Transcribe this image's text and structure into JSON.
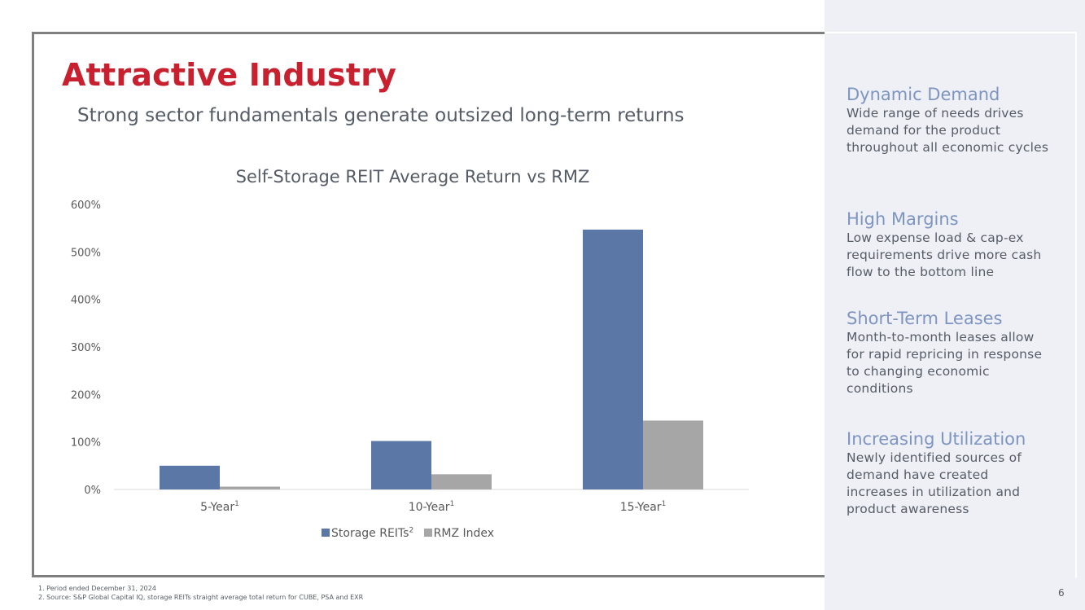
{
  "slide": {
    "title": "Attractive Industry",
    "subtitle": "Strong sector fundamentals generate outsized long-term returns",
    "page_number": "6"
  },
  "chart_data": {
    "type": "bar",
    "title": "Self-Storage REIT Average Return vs RMZ",
    "categories": [
      "5-Year",
      "10-Year",
      "15-Year"
    ],
    "category_superscripts": [
      "1",
      "1",
      "1"
    ],
    "series": [
      {
        "name": "Storage REITs",
        "superscript": "2",
        "color": "#5b77a6",
        "values": [
          50,
          102,
          547
        ]
      },
      {
        "name": "RMZ Index",
        "superscript": "",
        "color": "#a6a6a6",
        "values": [
          6,
          32,
          145
        ]
      }
    ],
    "ylim": [
      0,
      600
    ],
    "yticks": [
      0,
      100,
      200,
      300,
      400,
      500,
      600
    ],
    "ytick_labels": [
      "0%",
      "100%",
      "200%",
      "300%",
      "400%",
      "500%",
      "600%"
    ],
    "xlabel": "",
    "ylabel": "",
    "grid": false,
    "legend_position": "bottom"
  },
  "sidebar": {
    "sections": [
      {
        "heading": "Dynamic Demand",
        "body": "Wide range of needs drives demand for the product throughout all economic cycles"
      },
      {
        "heading": "High Margins",
        "body": "Low expense load & cap-ex requirements drive more cash flow to the bottom line"
      },
      {
        "heading": "Short-Term Leases",
        "body": "Month-to-month leases allow for rapid repricing in response to changing economic conditions"
      },
      {
        "heading": "Increasing Utilization",
        "body": "Newly identified sources of demand have created increases in utilization and product awareness"
      }
    ]
  },
  "footnotes": [
    "1.    Period ended December 31, 2024",
    "2.    Source: S&P Global Capital IQ, storage REITs straight average total return for CUBE, PSA and EXR"
  ]
}
